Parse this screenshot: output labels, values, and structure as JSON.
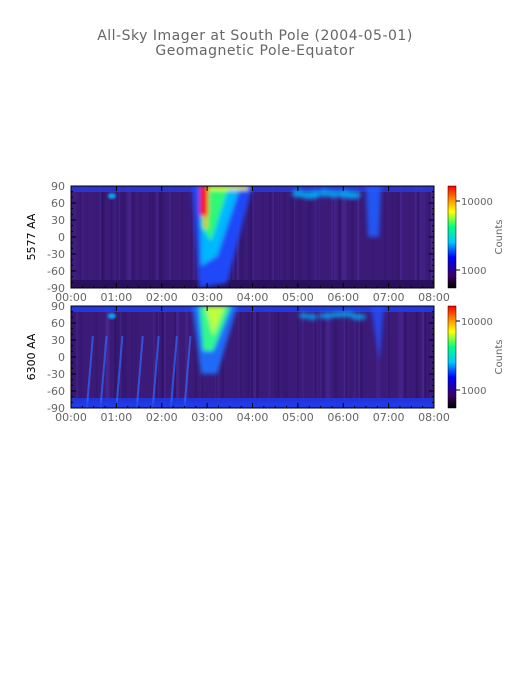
{
  "title": "All-Sky Imager at South Pole (2004-05-01)",
  "subtitle": "Geomagnetic Pole-Equator",
  "chart_data": [
    {
      "type": "heatmap",
      "ylabel": "5577 AA",
      "xlabel": "",
      "x_ticks": [
        "00:00",
        "01:00",
        "02:00",
        "03:00",
        "04:00",
        "05:00",
        "06:00",
        "07:00",
        "08:00"
      ],
      "y_ticks": [
        "90",
        "60",
        "30",
        "0",
        "-30",
        "-60",
        "-90"
      ],
      "xlim_hours": [
        0,
        8
      ],
      "ylim": [
        -90,
        90
      ],
      "colorbar": {
        "label": "Counts",
        "ticks": [
          "10000",
          "1000"
        ],
        "scale": "log"
      },
      "features": [
        {
          "t_start": "02:40",
          "t_end": "04:00",
          "lat_min": -90,
          "lat_max": 90,
          "peak": "03:00",
          "intensity": "high"
        },
        {
          "t_start": "05:00",
          "t_end": "06:20",
          "lat_min": 60,
          "lat_max": 90,
          "intensity": "moderate"
        },
        {
          "t_start": "06:30",
          "t_end": "06:50",
          "lat_min": 0,
          "lat_max": 90,
          "intensity": "moderate"
        }
      ]
    },
    {
      "type": "heatmap",
      "ylabel": "6300 AA",
      "xlabel": "",
      "x_ticks": [
        "00:00",
        "01:00",
        "02:00",
        "03:00",
        "04:00",
        "05:00",
        "06:00",
        "07:00",
        "08:00"
      ],
      "y_ticks": [
        "90",
        "60",
        "30",
        "0",
        "-30",
        "-60",
        "-90"
      ],
      "xlim_hours": [
        0,
        8
      ],
      "ylim": [
        -90,
        90
      ],
      "colorbar": {
        "label": "Counts",
        "ticks": [
          "10000",
          "1000"
        ],
        "scale": "log"
      },
      "features": [
        {
          "t_start": "02:40",
          "t_end": "03:40",
          "lat_min": -30,
          "lat_max": 90,
          "peak": "03:00",
          "intensity": "moderate"
        },
        {
          "t_start": "00:00",
          "t_end": "08:00",
          "lat_min": -90,
          "lat_max": -80,
          "intensity": "low"
        },
        {
          "t_start": "05:00",
          "t_end": "06:30",
          "lat_min": 60,
          "lat_max": 90,
          "intensity": "low"
        }
      ]
    }
  ]
}
